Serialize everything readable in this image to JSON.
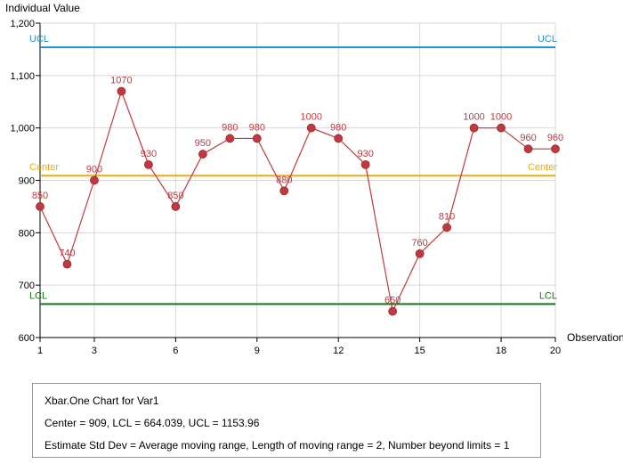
{
  "chart_data": {
    "type": "line",
    "ylabel": "Individual Value",
    "xlabel": "Observation",
    "xlim": [
      1,
      20
    ],
    "ylim": [
      600,
      1200
    ],
    "x_ticks": [
      1,
      3,
      6,
      9,
      12,
      15,
      18,
      20
    ],
    "y_ticks": [
      600,
      700,
      800,
      900,
      1000,
      1100,
      1200
    ],
    "y_tick_labels": [
      "600",
      "700",
      "800",
      "900",
      "1,000",
      "1,100",
      "1,200"
    ],
    "grid": true,
    "series": [
      {
        "x": [
          1,
          2,
          3,
          4,
          5,
          6,
          7,
          8,
          9,
          10,
          11,
          12,
          13,
          14,
          15,
          16,
          17,
          18,
          19,
          20
        ],
        "values": [
          850,
          740,
          900,
          1070,
          930,
          850,
          950,
          980,
          980,
          880,
          1000,
          980,
          930,
          650,
          760,
          810,
          1000,
          1000,
          960,
          960
        ],
        "color": "#c0393f"
      }
    ],
    "control_limits": [
      {
        "label": "UCL",
        "value": 1153.96,
        "color": "#1f8fd0"
      },
      {
        "label": "Center",
        "value": 909,
        "color": "#f0a818"
      },
      {
        "label": "LCL",
        "value": 664.039,
        "color": "#117a11"
      }
    ]
  },
  "summary": {
    "title": "Xbar.One Chart for Var1",
    "stats": "Center = 909, LCL = 664.039, UCL = 1153.96",
    "method": "Estimate Std Dev = Average moving range, Length of moving range = 2, Number beyond limits = 1"
  }
}
